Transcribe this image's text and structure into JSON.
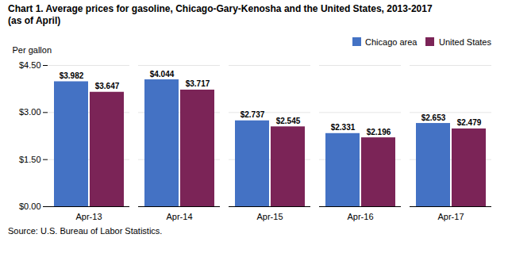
{
  "chart_data": {
    "type": "bar",
    "title": "Chart 1. Average prices for gasoline, Chicago-Gary-Kenosha  and the United States, 2013-2017",
    "subtitle": "(as of April)",
    "ylabel": "Per gallon",
    "source": "Source: U.S. Bureau of Labor Statistics.",
    "categories": [
      "Apr-13",
      "Apr-14",
      "Apr-15",
      "Apr-16",
      "Apr-17"
    ],
    "series": [
      {
        "name": "Chicago area",
        "color": "#4472C4",
        "values": [
          3.982,
          4.044,
          2.737,
          2.331,
          2.653
        ],
        "value_labels": [
          "$3.982",
          "$4.044",
          "$2.737",
          "$2.331",
          "$2.653"
        ]
      },
      {
        "name": "United States",
        "color": "#7B2457",
        "values": [
          3.647,
          3.717,
          2.545,
          2.196,
          2.479
        ],
        "value_labels": [
          "$3.647",
          "$3.717",
          "$2.545",
          "$2.196",
          "$2.479"
        ]
      }
    ],
    "ylim": [
      0,
      4.5
    ],
    "yticks": [
      {
        "value": 0.0,
        "label": "$0.00"
      },
      {
        "value": 1.5,
        "label": "$1.50"
      },
      {
        "value": 3.0,
        "label": "$3.00"
      },
      {
        "value": 4.5,
        "label": "$4.50"
      }
    ],
    "grid": true,
    "legend": "upper right",
    "data_labels": true
  }
}
